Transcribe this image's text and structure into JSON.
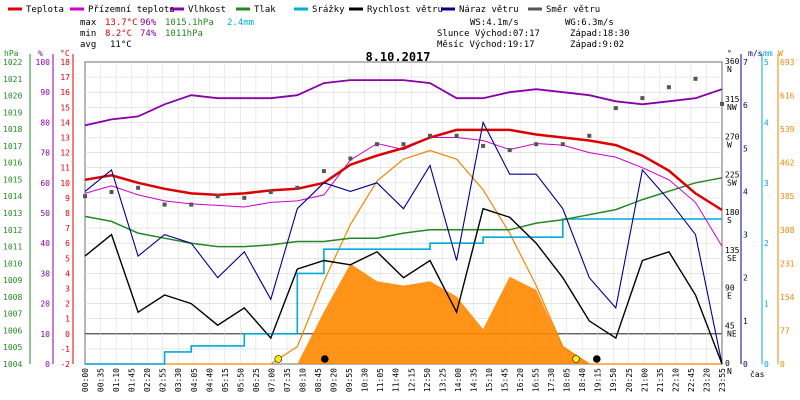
{
  "chart_data": {
    "type": "line",
    "title": "8.10.2017",
    "legend": [
      {
        "label": "Teplota",
        "color": "#dd0000"
      },
      {
        "label": "Přízemní teplota",
        "color": "#cc00cc"
      },
      {
        "label": "Vlhkost",
        "color": "#8800aa"
      },
      {
        "label": "Tlak",
        "color": "#228822"
      },
      {
        "label": "Srážky",
        "color": "#00aadd"
      },
      {
        "label": "Rychlost větru",
        "color": "#000000"
      },
      {
        "label": "Náraz větru",
        "color": "#000088"
      },
      {
        "label": "Směr větru",
        "color": "#555555"
      }
    ],
    "stats": {
      "max_label": "max",
      "min_label": "min",
      "avg_label": "avg",
      "max_temp": "13.7°C",
      "max_hum": "96%",
      "max_press": "1015.1hPa",
      "max_rain": "2.4mm",
      "min_temp": "8.2°C",
      "min_hum": "74%",
      "min_press": "1011hPa",
      "avg_temp": "11°C",
      "ws": "WS:4.1m/s",
      "wg": "WG:6.3m/s",
      "slunce": "Slunce Východ:07:17",
      "slunce_zapad": "Západ:18:30",
      "mesic": "Měsíc Východ:19:17",
      "mesic_zapad": "Západ:9:02"
    },
    "axes": {
      "hpa_label": "hPa",
      "pct_label": "%",
      "temp_label": "°C",
      "deg_label": "°",
      "ms_label": "m/s",
      "mm_label": "mm",
      "w_label": "W",
      "time_label": "čas",
      "hpa_ticks": [
        "1004",
        "1005",
        "1006",
        "1007",
        "1008",
        "1009",
        "1010",
        "1011",
        "1012",
        "1013",
        "1014",
        "1015",
        "1016",
        "1017",
        "1018",
        "1019",
        "1020",
        "1021",
        "1022"
      ],
      "pct_ticks": [
        "0",
        "10",
        "20",
        "30",
        "40",
        "50",
        "60",
        "70",
        "80",
        "90",
        "100"
      ],
      "temp_ticks": [
        "-2",
        "-1",
        "0",
        "1",
        "2",
        "3",
        "4",
        "5",
        "6",
        "7",
        "8",
        "9",
        "10",
        "11",
        "12",
        "13",
        "14",
        "15",
        "16",
        "17",
        "18"
      ],
      "dir_ticks": [
        {
          "deg": "0",
          "name": "N"
        },
        {
          "deg": "45",
          "name": "NE"
        },
        {
          "deg": "90",
          "name": "E"
        },
        {
          "deg": "135",
          "name": "SE"
        },
        {
          "deg": "180",
          "name": "S"
        },
        {
          "deg": "225",
          "name": "SW"
        },
        {
          "deg": "270",
          "name": "W"
        },
        {
          "deg": "315",
          "name": "NW"
        },
        {
          "deg": "360",
          "name": "N"
        }
      ],
      "ms_ticks": [
        "0",
        "1",
        "2",
        "3",
        "4",
        "5",
        "6",
        "7"
      ],
      "mm_ticks": [
        "0",
        "1",
        "2",
        "3",
        "4",
        "5"
      ],
      "w_ticks": [
        "0",
        "77",
        "154",
        "231",
        "308",
        "385",
        "462",
        "539",
        "616",
        "693"
      ],
      "time_ticks": [
        "00:00",
        "00:35",
        "01:10",
        "01:45",
        "02:20",
        "02:55",
        "03:30",
        "04:05",
        "04:40",
        "05:15",
        "05:50",
        "06:25",
        "07:00",
        "07:35",
        "08:10",
        "08:45",
        "09:20",
        "09:55",
        "10:30",
        "11:05",
        "11:40",
        "12:15",
        "12:50",
        "13:25",
        "14:00",
        "14:35",
        "15:10",
        "15:45",
        "16:20",
        "16:55",
        "17:30",
        "18:05",
        "18:40",
        "19:15",
        "19:50",
        "20:25",
        "21:00",
        "21:35",
        "22:10",
        "22:45",
        "23:20",
        "23:55"
      ]
    },
    "x_hours": [
      0,
      1,
      2,
      3,
      4,
      5,
      6,
      7,
      8,
      9,
      10,
      11,
      12,
      13,
      14,
      15,
      16,
      17,
      18,
      19,
      20,
      21,
      22,
      23,
      24
    ],
    "series": [
      {
        "name": "Teplota",
        "unit": "°C",
        "values": [
          10.2,
          10.5,
          10.0,
          9.6,
          9.3,
          9.2,
          9.3,
          9.5,
          9.6,
          10.0,
          11.2,
          11.8,
          12.3,
          13.0,
          13.5,
          13.5,
          13.5,
          13.2,
          13.0,
          12.8,
          12.5,
          11.8,
          10.8,
          9.3,
          8.2
        ]
      },
      {
        "name": "Přízemní teplota",
        "unit": "°C",
        "values": [
          9.3,
          9.8,
          9.2,
          8.8,
          8.6,
          8.5,
          8.4,
          8.7,
          8.8,
          9.2,
          11.5,
          12.6,
          12.2,
          13.0,
          13.0,
          12.8,
          12.2,
          12.6,
          12.5,
          12.0,
          11.7,
          11.0,
          10.2,
          8.7,
          5.8
        ]
      },
      {
        "name": "Vlhkost",
        "unit": "%",
        "values": [
          79,
          81,
          82,
          86,
          89,
          88,
          88,
          88,
          89,
          93,
          94,
          94,
          94,
          93,
          88,
          88,
          90,
          91,
          90,
          89,
          87,
          86,
          87,
          88,
          91
        ]
      },
      {
        "name": "Tlak",
        "unit": "hPa",
        "values": [
          1012.8,
          1012.5,
          1011.8,
          1011.5,
          1011.2,
          1011.0,
          1011.0,
          1011.1,
          1011.3,
          1011.3,
          1011.5,
          1011.5,
          1011.8,
          1012.0,
          1012.0,
          1012.0,
          1012.0,
          1012.4,
          1012.6,
          1012.9,
          1013.2,
          1013.8,
          1014.3,
          1014.8,
          1015.1
        ]
      },
      {
        "name": "Srážky",
        "unit": "mm",
        "values": [
          0,
          0,
          0,
          0.2,
          0.3,
          0.3,
          0.5,
          0.5,
          1.5,
          1.9,
          1.9,
          1.9,
          1.9,
          2.0,
          2.0,
          2.1,
          2.1,
          2.1,
          2.4,
          2.4,
          2.4,
          2.4,
          2.4,
          2.4,
          2.4
        ]
      },
      {
        "name": "Rychlost větru",
        "unit": "m/s",
        "values": [
          2.5,
          3.0,
          1.2,
          1.6,
          1.4,
          0.9,
          1.3,
          0.6,
          2.2,
          2.4,
          2.3,
          2.6,
          2.0,
          2.4,
          1.2,
          3.6,
          3.4,
          2.8,
          2.0,
          1.0,
          0.6,
          2.4,
          2.6,
          1.6,
          0
        ]
      },
      {
        "name": "Náraz větru",
        "unit": "m/s",
        "values": [
          4.0,
          4.5,
          2.5,
          3.0,
          2.8,
          2.0,
          2.6,
          1.5,
          3.6,
          4.2,
          4.0,
          4.2,
          3.6,
          4.6,
          2.4,
          5.6,
          4.4,
          4.4,
          3.6,
          2.0,
          1.3,
          4.5,
          3.8,
          3.0,
          0
        ]
      },
      {
        "name": "Směr větru",
        "unit": "°",
        "values": [
          200,
          205,
          210,
          190,
          190,
          200,
          198,
          205,
          210,
          230,
          245,
          262,
          262,
          272,
          272,
          260,
          255,
          262,
          262,
          272,
          305,
          317,
          330,
          340,
          310
        ]
      },
      {
        "name": "Solar",
        "unit": "W",
        "values": [
          0,
          0,
          0,
          0,
          0,
          0,
          0,
          0,
          0,
          120,
          230,
          190,
          180,
          190,
          155,
          80,
          200,
          170,
          40,
          0,
          0,
          0,
          0,
          0,
          0
        ]
      },
      {
        "name": "Theoretical solar",
        "unit": "W",
        "values": [
          0,
          0,
          0,
          0,
          0,
          0,
          0,
          0,
          40,
          190,
          320,
          420,
          470,
          490,
          470,
          400,
          300,
          180,
          40,
          0,
          0,
          0,
          0,
          0,
          0
        ]
      }
    ],
    "markers": [
      {
        "type": "sunrise",
        "time": "07:17"
      },
      {
        "type": "moonset",
        "time": "09:02"
      },
      {
        "type": "sunset",
        "time": "18:30"
      },
      {
        "type": "moonrise",
        "time": "19:17"
      }
    ],
    "colors": {
      "plot_bg": "#ffffff",
      "grid": "#d8d8d8",
      "solar": "#ff8800",
      "solar_theory": "#ee8800",
      "sun": "#ffee00",
      "moon": "#000000"
    },
    "grid": true,
    "legend_position": "top"
  }
}
